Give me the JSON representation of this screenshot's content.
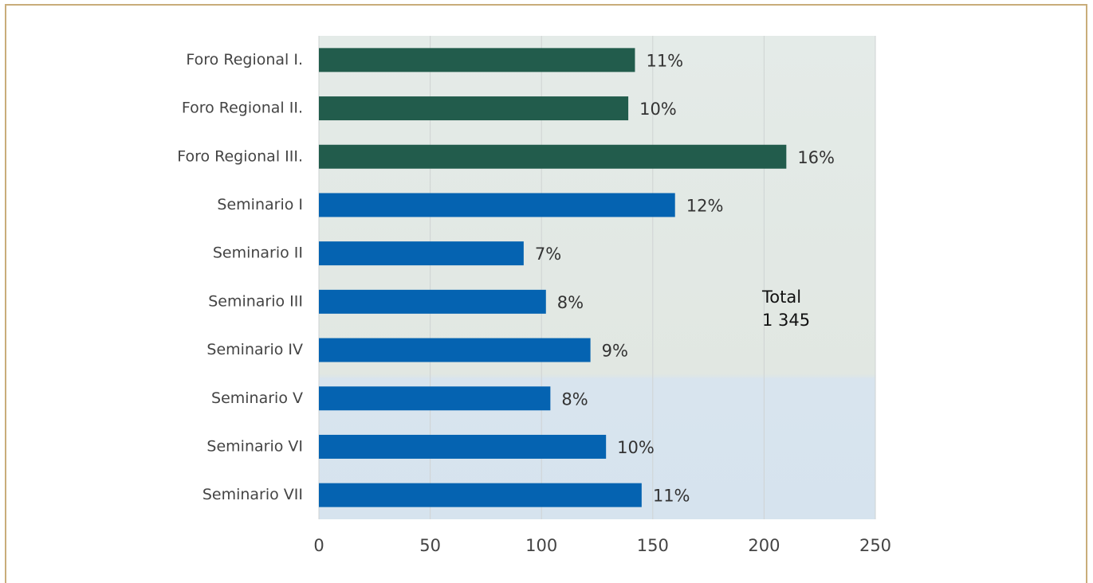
{
  "chart_data": {
    "type": "bar",
    "orientation": "horizontal",
    "categories": [
      "Foro Regional I.",
      "Foro Regional II.",
      "Foro Regional III.",
      "Seminario I",
      "Seminario II",
      "Seminario III",
      "Seminario IV",
      "Seminario V",
      "Seminario VI",
      "Seminario VII"
    ],
    "values": [
      142,
      139,
      210,
      160,
      92,
      102,
      122,
      104,
      129,
      145
    ],
    "value_labels": [
      "11%",
      "10%",
      "16%",
      "12%",
      "7%",
      "8%",
      "9%",
      "8%",
      "10%",
      "11%"
    ],
    "colors": [
      "#225c4c",
      "#225c4c",
      "#225c4c",
      "#0563b1",
      "#0563b1",
      "#0563b1",
      "#0563b1",
      "#0563b1",
      "#0563b1",
      "#0563b1"
    ],
    "xlim": [
      0,
      250
    ],
    "xticks": [
      0,
      50,
      100,
      150,
      200,
      250
    ],
    "grid": true,
    "annotation": [
      "Total",
      "1 345"
    ]
  }
}
